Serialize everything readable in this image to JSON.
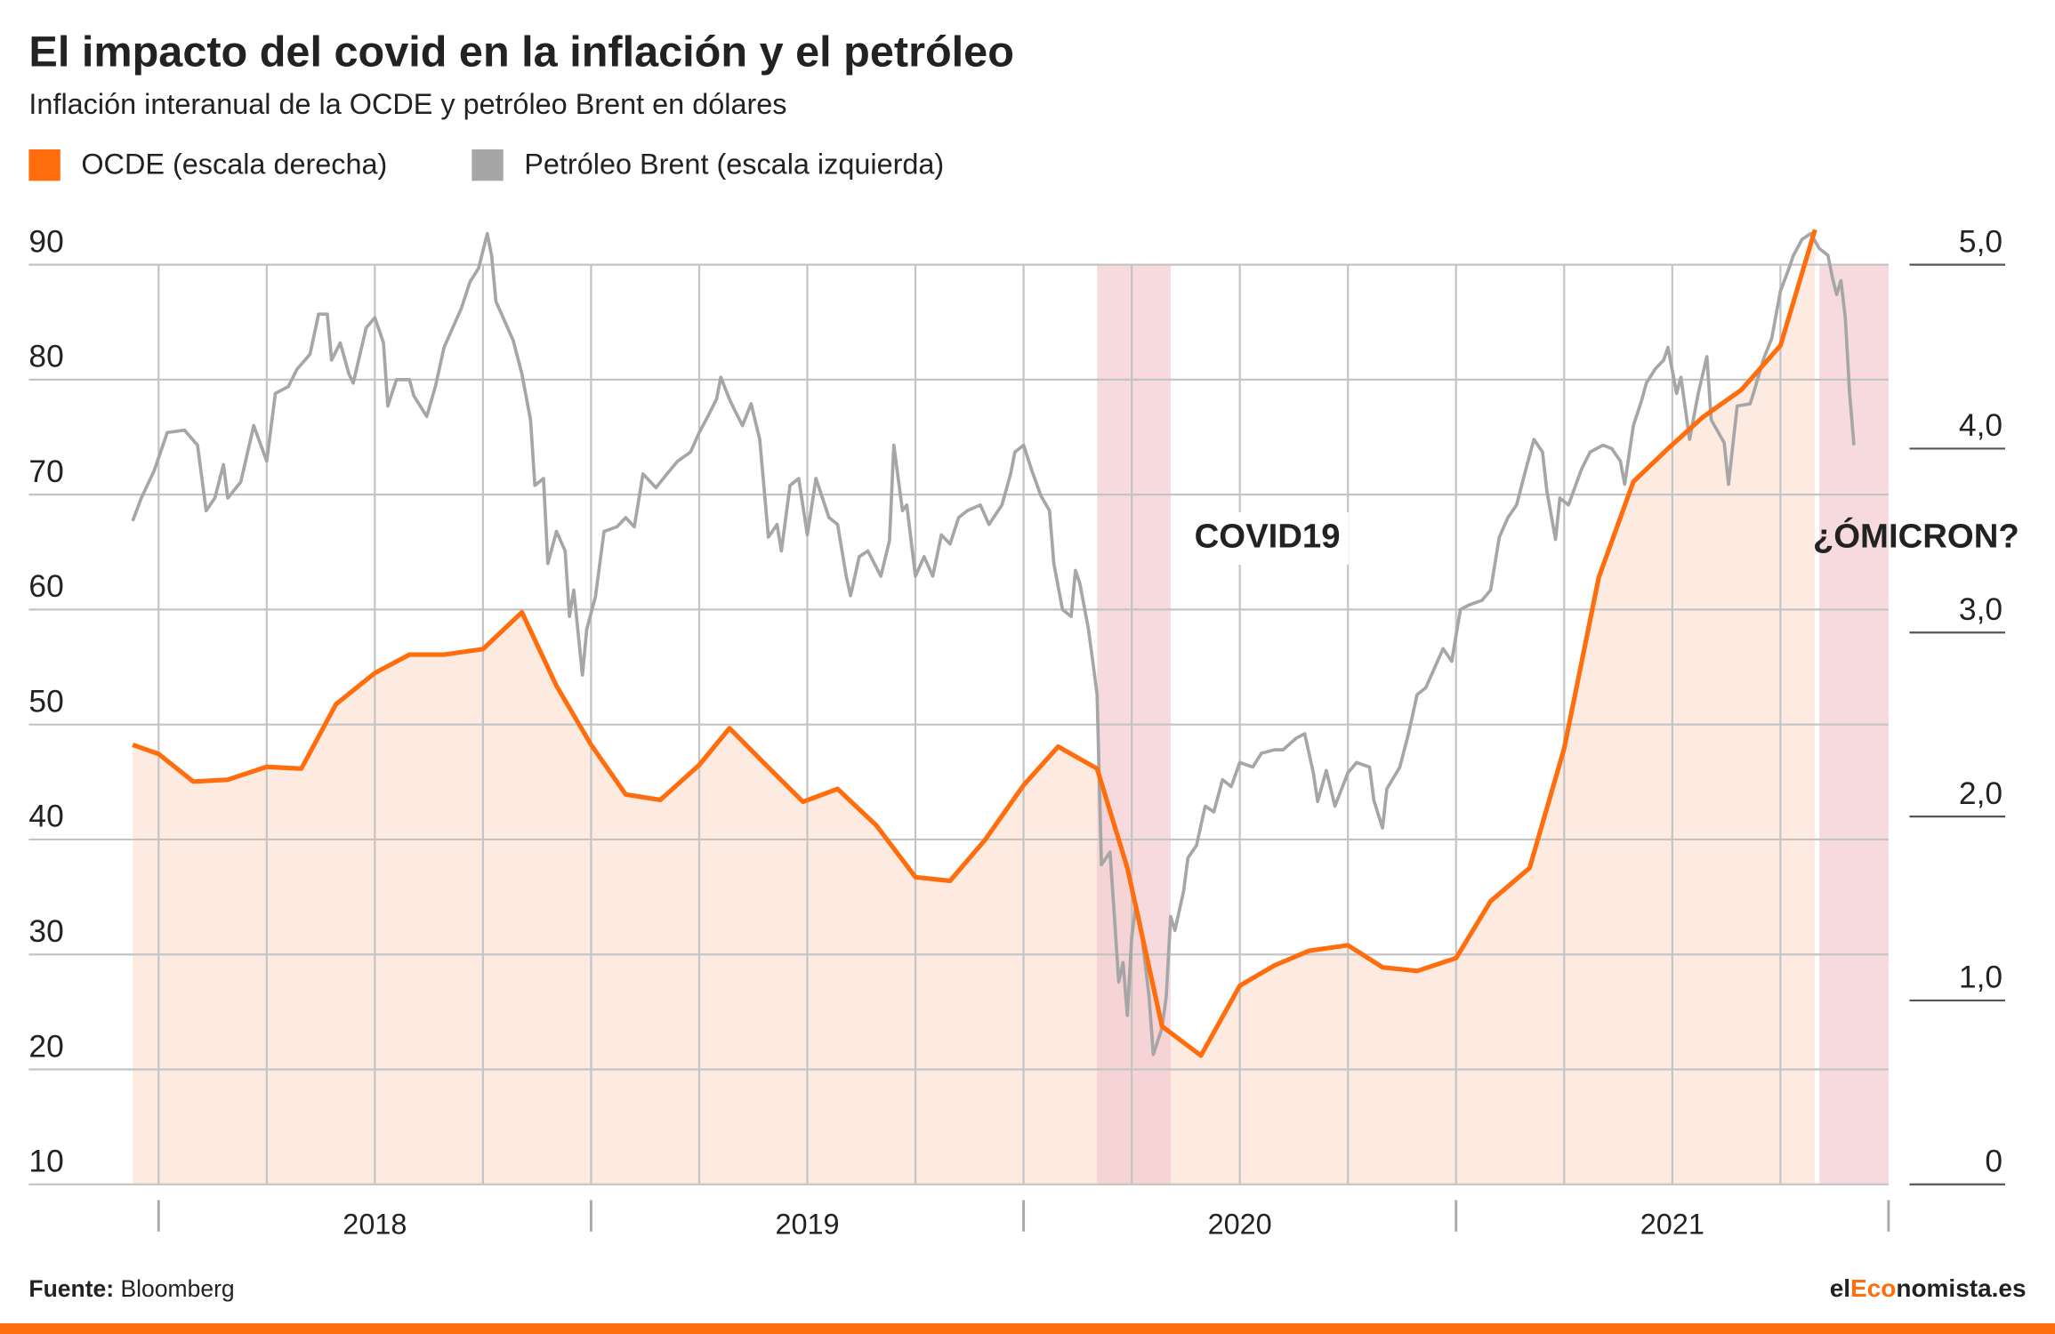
{
  "chart_data": {
    "type": "line",
    "title": "El impacto del covid en la inflación y el petróleo",
    "subtitle": "Inflación interanual de la OCDE y petróleo Brent en dólares",
    "categories": [
      "2018",
      "2019",
      "2020",
      "2021"
    ],
    "xlim": [
      2017.7,
      2022.0
    ],
    "xticks": [
      2018,
      2019,
      2020,
      2021,
      2022
    ],
    "xgrid": [
      2018,
      2018.25,
      2018.5,
      2018.75,
      2019,
      2019.25,
      2019.5,
      2019.75,
      2020,
      2020.25,
      2020.5,
      2020.75,
      2021,
      2021.25,
      2021.5,
      2021.75
    ],
    "ylim": [
      10,
      90
    ],
    "yticks": [
      10,
      20,
      30,
      40,
      50,
      60,
      70,
      80,
      90
    ],
    "y2lim": [
      0,
      5
    ],
    "y2ticks": [
      0,
      {
        "value": 1,
        "label": "1,0"
      },
      {
        "value": 2,
        "label": "2,0"
      },
      {
        "value": 3,
        "label": "3,0"
      },
      {
        "value": 4,
        "label": "4,0"
      },
      {
        "value": 5,
        "label": "5,0"
      }
    ],
    "grid": true,
    "legend": "top-left",
    "series": [
      {
        "name": "OCDE (escala derecha)",
        "color": "#ff6d0d",
        "area_color": "#fdebe2",
        "axis": "y2",
        "x": [
          2017.94,
          2018.0,
          2018.08,
          2018.16,
          2018.25,
          2018.33,
          2018.41,
          2018.5,
          2018.58,
          2018.66,
          2018.75,
          2018.84,
          2018.92,
          2019.0,
          2019.08,
          2019.16,
          2019.25,
          2019.32,
          2019.4,
          2019.49,
          2019.57,
          2019.66,
          2019.75,
          2019.83,
          2019.91,
          2020.0,
          2020.08,
          2020.17,
          2020.24,
          2020.32,
          2020.41,
          2020.5,
          2020.58,
          2020.66,
          2020.75,
          2020.83,
          2020.91,
          2021.0,
          2021.08,
          2021.17,
          2021.25,
          2021.33,
          2021.41,
          2021.49,
          2021.57,
          2021.66,
          2021.75,
          2021.83
        ],
        "values": [
          2.39,
          2.34,
          2.19,
          2.2,
          2.27,
          2.26,
          2.61,
          2.78,
          2.88,
          2.88,
          2.91,
          3.11,
          2.71,
          2.39,
          2.12,
          2.09,
          2.28,
          2.48,
          2.29,
          2.08,
          2.15,
          1.95,
          1.67,
          1.65,
          1.87,
          2.17,
          2.38,
          2.26,
          1.72,
          0.86,
          0.7,
          1.08,
          1.19,
          1.27,
          1.3,
          1.18,
          1.16,
          1.23,
          1.54,
          1.72,
          2.37,
          3.3,
          3.82,
          4.0,
          4.17,
          4.32,
          4.56,
          5.19
        ]
      },
      {
        "name": "Petróleo Brent (escala izquierda)",
        "color": "#a6a6a6",
        "x": [
          2017.94,
          2017.96,
          2017.99,
          2018.02,
          2018.06,
          2018.09,
          2018.11,
          2018.13,
          2018.15,
          2018.16,
          2018.19,
          2018.22,
          2018.25,
          2018.27,
          2018.3,
          2018.32,
          2018.35,
          2018.37,
          2018.39,
          2018.4,
          2018.42,
          2018.44,
          2018.45,
          2018.48,
          2018.5,
          2018.52,
          2018.53,
          2018.55,
          2018.58,
          2018.59,
          2018.62,
          2018.64,
          2018.66,
          2018.68,
          2018.7,
          2018.72,
          2018.74,
          2018.76,
          2018.77,
          2018.78,
          2018.8,
          2018.82,
          2018.84,
          2018.86,
          2018.87,
          2018.89,
          2018.9,
          2018.92,
          2018.94,
          2018.95,
          2018.96,
          2018.98,
          2018.99,
          2019.01,
          2019.03,
          2019.06,
          2019.08,
          2019.1,
          2019.12,
          2019.15,
          2019.18,
          2019.2,
          2019.23,
          2019.25,
          2019.27,
          2019.29,
          2019.3,
          2019.32,
          2019.33,
          2019.35,
          2019.37,
          2019.39,
          2019.41,
          2019.43,
          2019.44,
          2019.46,
          2019.48,
          2019.5,
          2019.52,
          2019.55,
          2019.57,
          2019.59,
          2019.6,
          2019.62,
          2019.64,
          2019.67,
          2019.69,
          2019.7,
          2019.72,
          2019.73,
          2019.75,
          2019.77,
          2019.79,
          2019.81,
          2019.83,
          2019.85,
          2019.87,
          2019.9,
          2019.92,
          2019.95,
          2019.97,
          2019.98,
          2020.0,
          2020.02,
          2020.04,
          2020.06,
          2020.07,
          2020.09,
          2020.11,
          2020.12,
          2020.13,
          2020.15,
          2020.16,
          2020.17,
          2020.18,
          2020.2,
          2020.21,
          2020.22,
          2020.23,
          2020.24,
          2020.25,
          2020.26,
          2020.27,
          2020.29,
          2020.3,
          2020.32,
          2020.33,
          2020.34,
          2020.35,
          2020.37,
          2020.38,
          2020.4,
          2020.42,
          2020.44,
          2020.46,
          2020.48,
          2020.5,
          2020.53,
          2020.55,
          2020.58,
          2020.6,
          2020.63,
          2020.65,
          2020.67,
          2020.68,
          2020.7,
          2020.72,
          2020.75,
          2020.77,
          2020.8,
          2020.81,
          2020.83,
          2020.84,
          2020.87,
          2020.89,
          2020.91,
          2020.93,
          2020.95,
          2020.97,
          2020.99,
          2021.01,
          2021.03,
          2021.06,
          2021.08,
          2021.1,
          2021.12,
          2021.14,
          2021.16,
          2021.18,
          2021.2,
          2021.21,
          2021.23,
          2021.24,
          2021.26,
          2021.29,
          2021.31,
          2021.34,
          2021.36,
          2021.38,
          2021.39,
          2021.41,
          2021.43,
          2021.44,
          2021.46,
          2021.48,
          2021.49,
          2021.51,
          2021.52,
          2021.54,
          2021.56,
          2021.58,
          2021.59,
          2021.62,
          2021.63,
          2021.65,
          2021.68,
          2021.69,
          2021.71,
          2021.73,
          2021.75,
          2021.77,
          2021.78,
          2021.8,
          2021.82,
          2021.84,
          2021.86,
          2021.87,
          2021.88,
          2021.89,
          2021.9,
          2021.91,
          2021.92
        ],
        "values": [
          67.7,
          69.7,
          72.1,
          75.4,
          75.6,
          74.3,
          68.6,
          69.7,
          72.6,
          69.7,
          71.1,
          76.0,
          72.9,
          78.8,
          79.4,
          80.9,
          82.2,
          85.7,
          85.7,
          81.7,
          83.2,
          80.5,
          79.7,
          84.5,
          85.4,
          83.2,
          77.7,
          80.0,
          80.0,
          78.6,
          76.8,
          79.4,
          82.8,
          84.5,
          86.2,
          88.5,
          89.7,
          92.7,
          90.8,
          86.8,
          85.1,
          83.4,
          80.5,
          76.5,
          70.8,
          71.4,
          64.0,
          66.8,
          65.1,
          59.4,
          61.7,
          54.3,
          58.3,
          61.1,
          66.8,
          67.2,
          68.0,
          67.2,
          71.8,
          70.6,
          72.0,
          72.9,
          73.7,
          75.4,
          76.8,
          78.3,
          80.2,
          78.3,
          77.5,
          76.0,
          77.9,
          74.8,
          66.3,
          67.4,
          65.1,
          70.8,
          71.4,
          66.5,
          71.4,
          68.0,
          67.4,
          62.9,
          61.2,
          64.6,
          65.1,
          62.9,
          66.0,
          74.3,
          68.6,
          69.1,
          62.9,
          64.6,
          62.9,
          66.5,
          65.7,
          68.0,
          68.6,
          69.1,
          67.4,
          69.1,
          71.8,
          73.7,
          74.3,
          72.0,
          69.9,
          68.6,
          64.0,
          60.0,
          59.4,
          63.4,
          62.3,
          58.3,
          55.5,
          52.6,
          37.8,
          38.9,
          33.3,
          27.6,
          29.3,
          24.7,
          31.5,
          34.4,
          32.7,
          26.4,
          21.3,
          23.6,
          26.4,
          33.3,
          32.1,
          35.5,
          38.4,
          39.5,
          42.9,
          42.4,
          45.2,
          44.6,
          46.7,
          46.3,
          47.5,
          47.8,
          47.8,
          48.8,
          49.2,
          45.8,
          43.3,
          46.0,
          42.9,
          45.8,
          46.7,
          46.3,
          43.4,
          41.0,
          44.4,
          46.3,
          49.2,
          52.6,
          53.2,
          54.9,
          56.6,
          55.5,
          60.0,
          60.4,
          60.8,
          61.7,
          66.3,
          68.0,
          69.1,
          72.0,
          74.8,
          73.7,
          70.3,
          66.1,
          69.7,
          69.1,
          72.2,
          73.7,
          74.3,
          74.0,
          72.9,
          70.9,
          76.0,
          78.3,
          79.7,
          80.9,
          81.7,
          82.8,
          78.8,
          80.2,
          74.8,
          78.8,
          82.0,
          76.5,
          74.5,
          70.9,
          77.7,
          77.9,
          79.1,
          81.7,
          83.6,
          87.7,
          89.7,
          90.8,
          92.2,
          92.7,
          91.4,
          90.8,
          88.9,
          87.4,
          88.6,
          85.4,
          78.8,
          74.3
        ]
      }
    ],
    "annotations": [
      {
        "text": "COVID19",
        "x": [
          2020.17,
          2020.34
        ],
        "color": "#f2c6cd"
      },
      {
        "text": "¿ÓMICRON?",
        "x": [
          2021.84,
          2022.0
        ],
        "color": "#f2c6cd"
      }
    ],
    "source_label": "Fuente:",
    "source": "Bloomberg",
    "brand": [
      "el",
      "Eco",
      "nomista.es"
    ],
    "brand_color": "#ff6d0d"
  }
}
